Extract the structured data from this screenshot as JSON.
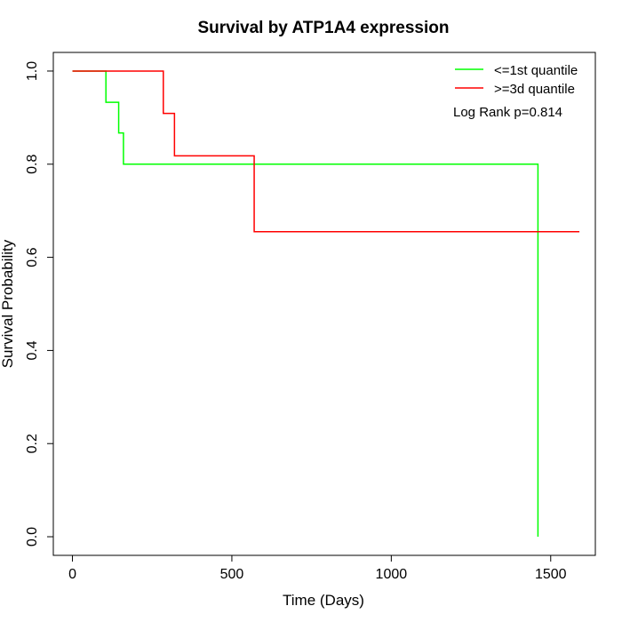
{
  "chart_data": {
    "type": "line",
    "title": "Survival by ATP1A4 expression",
    "xlabel": "Time (Days)",
    "ylabel": "Survival Probability",
    "xlim": [
      -60,
      1640
    ],
    "ylim": [
      -0.04,
      1.04
    ],
    "x_ticks": [
      0,
      500,
      1000,
      1500
    ],
    "y_ticks": [
      0.0,
      0.2,
      0.4,
      0.6,
      0.8,
      1.0
    ],
    "x_tick_labels": [
      "0",
      "500",
      "1000",
      "1500"
    ],
    "y_tick_labels": [
      "0.0",
      "0.2",
      "0.4",
      "0.6",
      "0.8",
      "1.0"
    ],
    "grid": false,
    "legend_position": "top-right",
    "annotation": "Log Rank p=0.814",
    "series": [
      {
        "name": "<=1st quantile",
        "color": "#00ff00",
        "step": true,
        "x": [
          0,
          105,
          145,
          160,
          1460,
          1460
        ],
        "y": [
          1.0,
          0.933,
          0.867,
          0.8,
          0.8,
          0.0
        ]
      },
      {
        "name": ">=3d quantile",
        "color": "#ff0000",
        "step": true,
        "x": [
          0,
          285,
          320,
          570,
          1590
        ],
        "y": [
          1.0,
          0.909,
          0.818,
          0.655,
          0.655
        ]
      }
    ]
  }
}
